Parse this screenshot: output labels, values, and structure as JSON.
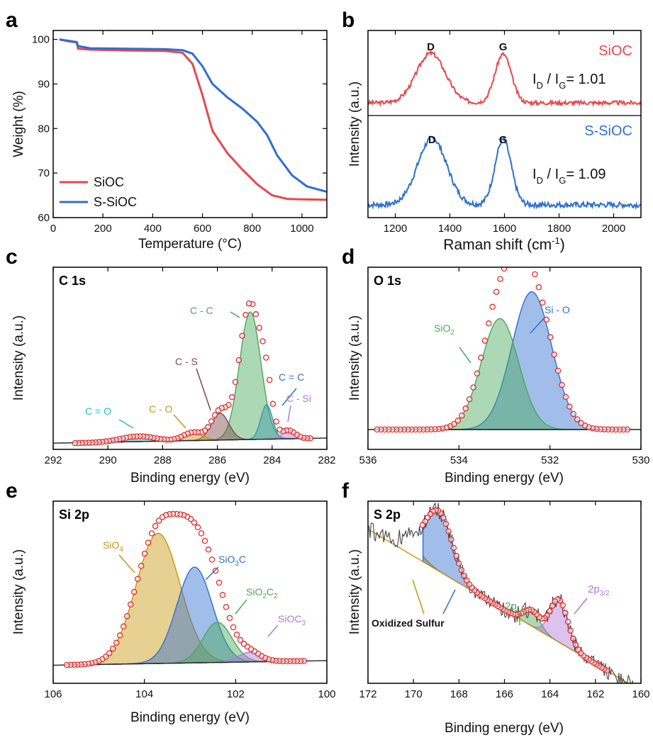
{
  "colors": {
    "siocRed": "#e8474f",
    "ssiocBlue": "#2f6fd0",
    "fitRed": "#e42a2a",
    "green": "#4aa85a",
    "brown": "#7a4a48",
    "teal": "#3a9aa6",
    "cyan": "#22bcc8",
    "gold": "#c8960e",
    "purple": "#b07ad8"
  },
  "chart_data": [
    {
      "panel": "a",
      "type": "line",
      "xlabel": "Temperature (°C)",
      "ylabel": "Weight (%)",
      "xlim": [
        0,
        1100
      ],
      "ylim": [
        60,
        102
      ],
      "xticks": [
        "0",
        "200",
        "400",
        "600",
        "800",
        "1000"
      ],
      "yticks": [
        "60",
        "70",
        "80",
        "90",
        "100"
      ],
      "legend_position": "bottom-left",
      "series": [
        {
          "name": "SiOC",
          "x": [
            25,
            60,
            95,
            100,
            150,
            300,
            450,
            520,
            560,
            600,
            640,
            700,
            760,
            820,
            880,
            940,
            1000,
            1100
          ],
          "y": [
            100,
            99.6,
            99.3,
            97.9,
            97.7,
            97.5,
            97.4,
            97.0,
            94.5,
            87.5,
            79.5,
            74.5,
            70.8,
            67.5,
            65.0,
            64.2,
            64.1,
            64.0
          ]
        },
        {
          "name": "S-SiOC",
          "x": [
            25,
            60,
            95,
            100,
            150,
            300,
            450,
            520,
            560,
            600,
            640,
            700,
            760,
            820,
            860,
            900,
            960,
            1020,
            1100
          ],
          "y": [
            100,
            99.7,
            99.4,
            98.5,
            98.0,
            97.9,
            97.8,
            97.6,
            96.8,
            94.0,
            90.0,
            87.0,
            84.5,
            81.5,
            78.5,
            74.0,
            69.5,
            67.0,
            65.8
          ]
        }
      ]
    },
    {
      "panel": "b",
      "type": "line",
      "xlabel": "Raman shift (cm⁻¹)",
      "ylabel": "Intensity (a.u.)",
      "xlim": [
        1100,
        2100
      ],
      "xticks": [
        "1200",
        "1400",
        "1600",
        "1800",
        "2000"
      ],
      "subplots": [
        {
          "name": "SiOC",
          "peaks": [
            {
              "label": "D",
              "x": 1330
            },
            {
              "label": "G",
              "x": 1595
            }
          ],
          "ratio_label": "I",
          "ratio_sub_d": "D",
          "ratio_sub_g": "G",
          "ratio_text": "= 1.01",
          "ratio": 1.01
        },
        {
          "name": "S-SiOC",
          "peaks": [
            {
              "label": "D",
              "x": 1335
            },
            {
              "label": "G",
              "x": 1595
            }
          ],
          "ratio_label": "I",
          "ratio_sub_d": "D",
          "ratio_sub_g": "G",
          "ratio_text": "= 1.09",
          "ratio": 1.09
        }
      ]
    },
    {
      "panel": "c",
      "type": "area",
      "title": "C 1s",
      "xlabel": "Binding energy (eV)",
      "ylabel": "Intensity (a.u.)",
      "xlim": [
        292,
        282
      ],
      "xticks": [
        "292",
        "290",
        "288",
        "286",
        "284",
        "282"
      ],
      "components": [
        {
          "name": "C - C",
          "center": 284.8,
          "height": 1.0,
          "width": 0.55
        },
        {
          "name": "C = C",
          "center": 284.2,
          "height": 0.27,
          "width": 0.3
        },
        {
          "name": "C - S",
          "center": 285.9,
          "height": 0.21,
          "width": 0.45
        },
        {
          "name": "C - O",
          "center": 286.9,
          "height": 0.06,
          "width": 0.5
        },
        {
          "name": "C = O",
          "center": 288.9,
          "height": 0.04,
          "width": 0.9
        },
        {
          "name": "C - Si",
          "center": 283.4,
          "height": 0.06,
          "width": 0.35
        }
      ]
    },
    {
      "panel": "d",
      "type": "area",
      "title": "O 1s",
      "xlabel": "Binding energy (eV)",
      "ylabel": "Intensity (a.u.)",
      "xlim": [
        536,
        530
      ],
      "xticks": [
        "536",
        "534",
        "532",
        "530"
      ],
      "components": [
        {
          "name": "Si - O",
          "center": 532.4,
          "height": 0.72,
          "width": 0.62
        },
        {
          "name": "SiO",
          "sub": "2",
          "center": 533.1,
          "height": 0.58,
          "width": 0.58
        }
      ]
    },
    {
      "panel": "e",
      "type": "area",
      "title": "Si 2p",
      "xlabel": "Binding energy (eV)",
      "ylabel": "Intensity (a.u.)",
      "xlim": [
        106,
        100
      ],
      "xticks": [
        "106",
        "104",
        "102",
        "100"
      ],
      "components": [
        {
          "name": "SiO",
          "sub": "4",
          "center": 103.7,
          "height": 0.68,
          "width": 0.68
        },
        {
          "name": "SiO",
          "sub": "3",
          "tail": "C",
          "center": 102.9,
          "height": 0.5,
          "width": 0.55
        },
        {
          "name": "SiO",
          "sub": "2",
          "tail": "C",
          "sub2": "2",
          "center": 102.4,
          "height": 0.21,
          "width": 0.45
        },
        {
          "name": "SiOC",
          "sub": "3",
          "center": 101.7,
          "height": 0.05,
          "width": 0.35
        }
      ]
    },
    {
      "panel": "f",
      "type": "area",
      "title": "S 2p",
      "xlabel": "Binding energy (eV)",
      "ylabel": "Intensity (a.u.)",
      "xlim": [
        172,
        160
      ],
      "xticks": [
        "172",
        "170",
        "168",
        "166",
        "164",
        "162",
        "160"
      ],
      "annotation": "Oxidized Sulfur",
      "components": [
        {
          "name": "Oxidized Sulfur",
          "center": 170.2,
          "height": 0.09,
          "width": 0.7
        },
        {
          "name": "Oxidized Sulfur",
          "center": 168.9,
          "height": 0.42,
          "width": 0.85
        },
        {
          "name": "2p",
          "sub": "1/2",
          "center": 164.8,
          "height": 0.11,
          "width": 0.5
        },
        {
          "name": "2p",
          "sub": "3/2",
          "center": 163.6,
          "height": 0.3,
          "width": 0.55
        }
      ]
    }
  ]
}
